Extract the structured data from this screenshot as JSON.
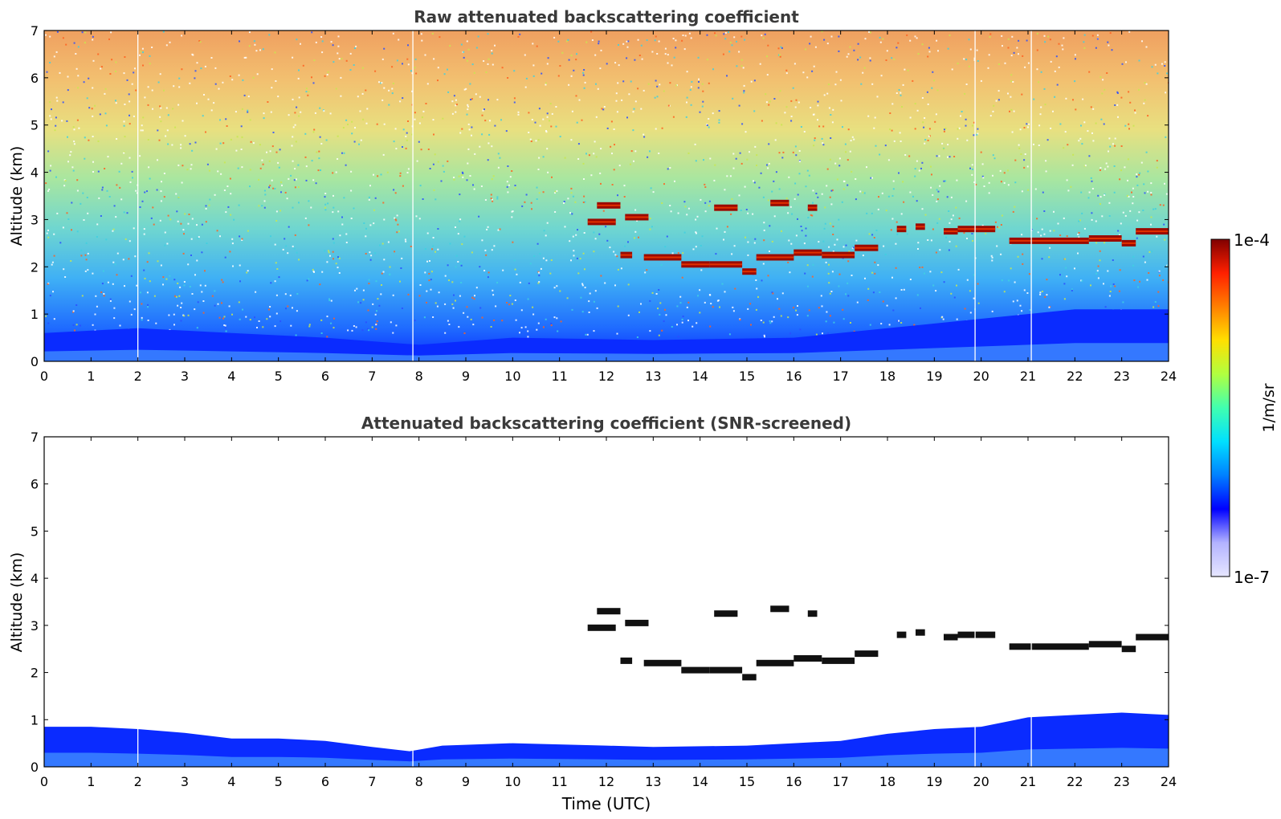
{
  "chart_data": [
    {
      "type": "heatmap",
      "title": "Raw attenuated backscattering coefficient",
      "xlabel": "",
      "ylabel": "Altitude (km)",
      "xlim": [
        0,
        24
      ],
      "ylim": [
        0,
        7
      ],
      "x_ticks": [
        "0",
        "1",
        "2",
        "3",
        "4",
        "5",
        "6",
        "7",
        "8",
        "9",
        "10",
        "11",
        "12",
        "13",
        "14",
        "15",
        "16",
        "17",
        "18",
        "19",
        "20",
        "21",
        "22",
        "23",
        "24"
      ],
      "y_ticks": [
        "0",
        "1",
        "2",
        "3",
        "4",
        "5",
        "6",
        "7"
      ],
      "colorscale": "jet",
      "background_noise": "high; signal increases with altitude from blue near surface to red/orange above 5 km",
      "boundary_layer": [
        {
          "x": 0,
          "top_km": 0.6
        },
        {
          "x": 2,
          "top_km": 0.7
        },
        {
          "x": 4,
          "top_km": 0.6
        },
        {
          "x": 6,
          "top_km": 0.5
        },
        {
          "x": 8,
          "top_km": 0.35
        },
        {
          "x": 10,
          "top_km": 0.5
        },
        {
          "x": 13,
          "top_km": 0.45
        },
        {
          "x": 16,
          "top_km": 0.5
        },
        {
          "x": 18,
          "top_km": 0.7
        },
        {
          "x": 20,
          "top_km": 0.9
        },
        {
          "x": 22,
          "top_km": 1.1
        },
        {
          "x": 24,
          "top_km": 1.1
        }
      ],
      "cloud_layers": [
        {
          "x_start": 11.6,
          "x_end": 12.2,
          "alt_km": 2.95
        },
        {
          "x_start": 11.8,
          "x_end": 12.3,
          "alt_km": 3.3
        },
        {
          "x_start": 12.4,
          "x_end": 12.9,
          "alt_km": 3.05
        },
        {
          "x_start": 12.3,
          "x_end": 12.55,
          "alt_km": 2.25
        },
        {
          "x_start": 12.8,
          "x_end": 13.6,
          "alt_km": 2.2
        },
        {
          "x_start": 13.6,
          "x_end": 14.2,
          "alt_km": 2.05
        },
        {
          "x_start": 14.2,
          "x_end": 14.9,
          "alt_km": 2.05
        },
        {
          "x_start": 14.9,
          "x_end": 15.2,
          "alt_km": 1.9
        },
        {
          "x_start": 15.2,
          "x_end": 16.0,
          "alt_km": 2.2
        },
        {
          "x_start": 16.0,
          "x_end": 16.6,
          "alt_km": 2.3
        },
        {
          "x_start": 16.6,
          "x_end": 17.3,
          "alt_km": 2.25
        },
        {
          "x_start": 17.3,
          "x_end": 17.8,
          "alt_km": 2.4
        },
        {
          "x_start": 14.3,
          "x_end": 14.8,
          "alt_km": 3.25
        },
        {
          "x_start": 15.5,
          "x_end": 15.9,
          "alt_km": 3.35
        },
        {
          "x_start": 16.3,
          "x_end": 16.5,
          "alt_km": 3.25
        },
        {
          "x_start": 18.2,
          "x_end": 18.4,
          "alt_km": 2.8
        },
        {
          "x_start": 18.6,
          "x_end": 18.8,
          "alt_km": 2.85
        },
        {
          "x_start": 19.2,
          "x_end": 19.5,
          "alt_km": 2.75
        },
        {
          "x_start": 19.5,
          "x_end": 20.3,
          "alt_km": 2.8
        },
        {
          "x_start": 20.6,
          "x_end": 21.1,
          "alt_km": 2.55
        },
        {
          "x_start": 21.1,
          "x_end": 22.3,
          "alt_km": 2.55
        },
        {
          "x_start": 22.3,
          "x_end": 23.0,
          "alt_km": 2.6
        },
        {
          "x_start": 23.0,
          "x_end": 23.3,
          "alt_km": 2.5
        },
        {
          "x_start": 23.3,
          "x_end": 24.0,
          "alt_km": 2.75
        }
      ],
      "data_gaps_x": [
        2.0,
        7.87,
        19.87,
        21.07
      ]
    },
    {
      "type": "heatmap",
      "title": "Attenuated backscattering coefficient (SNR-screened)",
      "xlabel": "Time (UTC)",
      "ylabel": "Altitude (km)",
      "xlim": [
        0,
        24
      ],
      "ylim": [
        0,
        7
      ],
      "x_ticks": [
        "0",
        "1",
        "2",
        "3",
        "4",
        "5",
        "6",
        "7",
        "8",
        "9",
        "10",
        "11",
        "12",
        "13",
        "14",
        "15",
        "16",
        "17",
        "18",
        "19",
        "20",
        "21",
        "22",
        "23",
        "24"
      ],
      "y_ticks": [
        "0",
        "1",
        "2",
        "3",
        "4",
        "5",
        "6",
        "7"
      ],
      "colorscale": "jet",
      "background_noise": "screened out (white)",
      "boundary_layer": [
        {
          "x": 0,
          "top_km": 0.85
        },
        {
          "x": 1,
          "top_km": 0.85
        },
        {
          "x": 2,
          "top_km": 0.8
        },
        {
          "x": 3,
          "top_km": 0.72
        },
        {
          "x": 4,
          "top_km": 0.6
        },
        {
          "x": 5,
          "top_km": 0.6
        },
        {
          "x": 6,
          "top_km": 0.55
        },
        {
          "x": 7,
          "top_km": 0.42
        },
        {
          "x": 7.8,
          "top_km": 0.33
        },
        {
          "x": 8.5,
          "top_km": 0.45
        },
        {
          "x": 10,
          "top_km": 0.5
        },
        {
          "x": 12,
          "top_km": 0.45
        },
        {
          "x": 13,
          "top_km": 0.42
        },
        {
          "x": 15,
          "top_km": 0.45
        },
        {
          "x": 16,
          "top_km": 0.5
        },
        {
          "x": 17,
          "top_km": 0.55
        },
        {
          "x": 18,
          "top_km": 0.7
        },
        {
          "x": 19,
          "top_km": 0.8
        },
        {
          "x": 20,
          "top_km": 0.85
        },
        {
          "x": 21,
          "top_km": 1.05
        },
        {
          "x": 22,
          "top_km": 1.1
        },
        {
          "x": 23,
          "top_km": 1.15
        },
        {
          "x": 24,
          "top_km": 1.1
        }
      ],
      "cloud_layers": [
        {
          "x_start": 11.6,
          "x_end": 12.2,
          "alt_km": 2.95
        },
        {
          "x_start": 11.8,
          "x_end": 12.3,
          "alt_km": 3.3
        },
        {
          "x_start": 12.4,
          "x_end": 12.9,
          "alt_km": 3.05
        },
        {
          "x_start": 12.3,
          "x_end": 12.55,
          "alt_km": 2.25
        },
        {
          "x_start": 12.8,
          "x_end": 13.6,
          "alt_km": 2.2
        },
        {
          "x_start": 13.6,
          "x_end": 14.2,
          "alt_km": 2.05
        },
        {
          "x_start": 14.2,
          "x_end": 14.9,
          "alt_km": 2.05
        },
        {
          "x_start": 14.9,
          "x_end": 15.2,
          "alt_km": 1.9
        },
        {
          "x_start": 15.2,
          "x_end": 16.0,
          "alt_km": 2.2
        },
        {
          "x_start": 16.0,
          "x_end": 16.6,
          "alt_km": 2.3
        },
        {
          "x_start": 16.6,
          "x_end": 17.3,
          "alt_km": 2.25
        },
        {
          "x_start": 17.3,
          "x_end": 17.8,
          "alt_km": 2.4
        },
        {
          "x_start": 14.3,
          "x_end": 14.8,
          "alt_km": 3.25
        },
        {
          "x_start": 15.5,
          "x_end": 15.9,
          "alt_km": 3.35
        },
        {
          "x_start": 16.3,
          "x_end": 16.5,
          "alt_km": 3.25
        },
        {
          "x_start": 18.2,
          "x_end": 18.4,
          "alt_km": 2.8
        },
        {
          "x_start": 18.6,
          "x_end": 18.8,
          "alt_km": 2.85
        },
        {
          "x_start": 19.2,
          "x_end": 19.5,
          "alt_km": 2.75
        },
        {
          "x_start": 19.5,
          "x_end": 20.3,
          "alt_km": 2.8
        },
        {
          "x_start": 20.6,
          "x_end": 21.1,
          "alt_km": 2.55
        },
        {
          "x_start": 21.1,
          "x_end": 22.3,
          "alt_km": 2.55
        },
        {
          "x_start": 22.3,
          "x_end": 23.0,
          "alt_km": 2.6
        },
        {
          "x_start": 23.0,
          "x_end": 23.3,
          "alt_km": 2.5
        },
        {
          "x_start": 23.3,
          "x_end": 24.0,
          "alt_km": 2.75
        }
      ],
      "data_gaps_x": [
        2.0,
        7.87,
        19.87,
        21.07
      ]
    }
  ],
  "colorbar": {
    "label": "1/m/sr",
    "max_label": "1e-4",
    "min_label": "1e-7",
    "scale": "log",
    "colors": [
      "#e6e6ff",
      "#b3b3ff",
      "#0000ff",
      "#0080ff",
      "#00e0ff",
      "#40ffb0",
      "#b0ff40",
      "#ffe000",
      "#ff8000",
      "#ff2000",
      "#800000"
    ]
  }
}
